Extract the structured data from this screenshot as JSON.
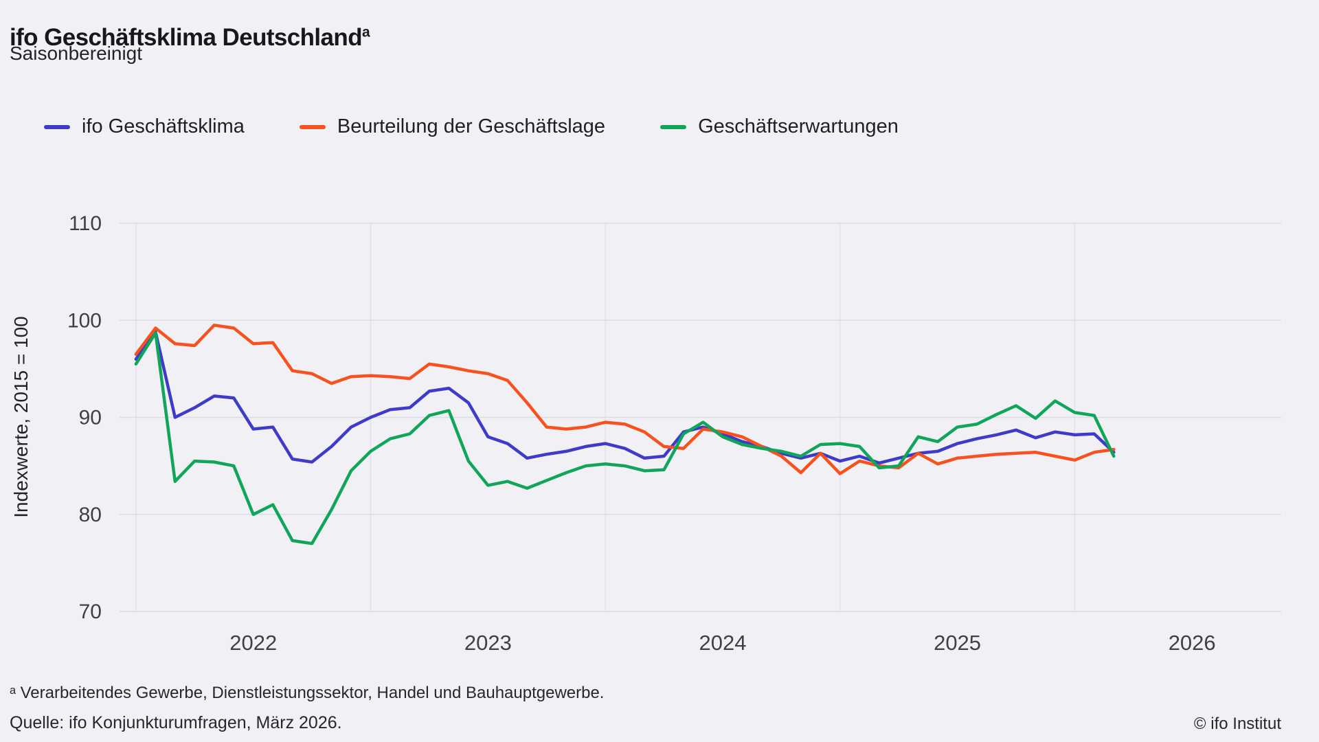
{
  "header": {
    "title": "ifo Geschäftsklima Deutschland",
    "title_note_marker": "a",
    "subtitle": "Saisonbereinigt"
  },
  "footer": {
    "footnote": "ᵃ Verarbeitendes Gewerbe, Dienstleistungssektor, Handel und Bauhauptgewerbe.",
    "source": "Quelle: ifo Konjunkturumfragen, März 2026.",
    "copyright": "© ifo Institut"
  },
  "chart_data": {
    "type": "line",
    "title": "ifo Geschäftsklima Deutschland",
    "subtitle": "Saisonbereinigt",
    "ylabel": "Indexwerte, 2015 = 100",
    "xlabel": "",
    "ylim": [
      70,
      110
    ],
    "yticks": [
      70,
      80,
      90,
      100,
      110
    ],
    "xticks": [
      2022,
      2023,
      2024,
      2025,
      2026
    ],
    "xgrid_years": [
      2022,
      2023,
      2024,
      2025,
      2026
    ],
    "x_domain": [
      2021.93,
      2026.88
    ],
    "x_start": "2022-01",
    "x_end": "2026-03",
    "x_start_decimal": 2022.0,
    "x_unit": "month",
    "grid": "on",
    "legend_position": "top",
    "colors": {
      "background": "#f1f1f5",
      "grid": "#dbdbe2",
      "grid_v": "#e0e0e7",
      "tick_text": "#3f3f47"
    },
    "series": [
      {
        "name": "ifo Geschäftsklima",
        "color": "#3d3bc8",
        "values": [
          96.0,
          98.8,
          90.0,
          91.0,
          92.2,
          92.0,
          88.8,
          89.0,
          85.7,
          85.4,
          87.0,
          89.0,
          90.0,
          90.8,
          91.0,
          92.7,
          93.0,
          91.5,
          88.0,
          87.3,
          85.8,
          86.2,
          86.5,
          87.0,
          87.3,
          86.8,
          85.8,
          86.0,
          88.5,
          89.0,
          88.3,
          87.5,
          87.0,
          86.3,
          85.8,
          86.3,
          85.5,
          86.0,
          85.3,
          85.8,
          86.3,
          86.5,
          87.3,
          87.8,
          88.2,
          88.7,
          87.9,
          88.5,
          88.2,
          88.3,
          86.4
        ]
      },
      {
        "name": "Beurteilung der Geschäftslage",
        "color": "#f6511e",
        "values": [
          96.5,
          99.2,
          97.6,
          97.4,
          99.5,
          99.2,
          97.6,
          97.7,
          94.8,
          94.5,
          93.5,
          94.2,
          94.3,
          94.2,
          94.0,
          95.5,
          95.2,
          94.8,
          94.5,
          93.8,
          91.5,
          89.0,
          88.8,
          89.0,
          89.5,
          89.3,
          88.5,
          87.0,
          86.8,
          88.8,
          88.5,
          88.0,
          87.0,
          86.0,
          84.3,
          86.3,
          84.2,
          85.5,
          85.0,
          84.8,
          86.3,
          85.2,
          85.8,
          86.0,
          86.2,
          86.3,
          86.4,
          86.0,
          85.6,
          86.4,
          86.7
        ]
      },
      {
        "name": "Geschäftserwartungen",
        "color": "#10a55a",
        "values": [
          95.5,
          98.7,
          83.4,
          85.5,
          85.4,
          85.0,
          80.0,
          81.0,
          77.3,
          77.0,
          80.5,
          84.5,
          86.5,
          87.8,
          88.3,
          90.2,
          90.7,
          85.5,
          83.0,
          83.4,
          82.7,
          83.5,
          84.3,
          85.0,
          85.2,
          85.0,
          84.5,
          84.6,
          88.3,
          89.5,
          88.0,
          87.2,
          86.8,
          86.5,
          86.0,
          87.2,
          87.3,
          87.0,
          84.8,
          85.0,
          88.0,
          87.5,
          89.0,
          89.3,
          90.3,
          91.2,
          89.9,
          91.7,
          90.5,
          90.2,
          86.0
        ]
      }
    ]
  }
}
